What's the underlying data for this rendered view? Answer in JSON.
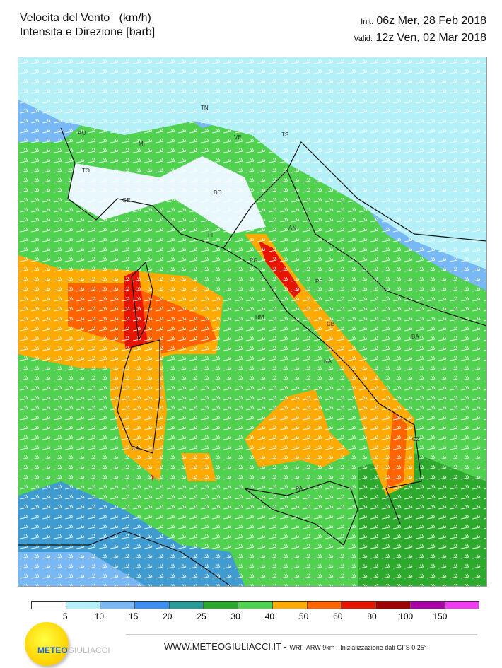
{
  "header": {
    "title_line1": "Velocita del Vento   (km/h)",
    "title_line2": "Intensita e Direzione [barb]",
    "init_label": "Init:",
    "init_value": "06z Mer, 28 Feb 2018",
    "valid_label": "Valid:",
    "valid_value": "12z Ven, 02 Mar 2018"
  },
  "map": {
    "variable": "wind speed km/h with barbs",
    "cities": [
      "AO",
      "MI",
      "TO",
      "TN",
      "VE",
      "TS",
      "BO",
      "GE",
      "FI",
      "AN",
      "PG",
      "PE",
      "RM",
      "CB",
      "NA",
      "BA",
      "CA",
      "PA",
      "CZ"
    ]
  },
  "legend": {
    "colors": [
      "#ffffff",
      "#b4f0f8",
      "#78b8f4",
      "#3c8ef0",
      "#289c96",
      "#2daa2d",
      "#50d250",
      "#ffaa00",
      "#ff6400",
      "#e61400",
      "#a00000",
      "#aa00aa",
      "#f03cf0"
    ],
    "labels": [
      "5",
      "10",
      "15",
      "20",
      "25",
      "30",
      "40",
      "50",
      "60",
      "80",
      "100",
      "150"
    ]
  },
  "footer": {
    "site": "WWW.METEOGIULIACCI.IT",
    "sep": " - ",
    "model": "WRF-ARW 9km - Inizializzazione dati GFS 0.25°"
  },
  "logo": {
    "part1": "METEO",
    "part2": "GIULIACCI"
  }
}
